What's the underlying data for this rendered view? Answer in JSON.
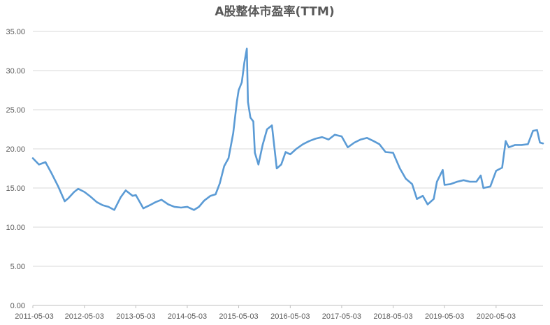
{
  "chart_data": {
    "type": "line",
    "title": "A股整体市盈率(TTM)",
    "xlabel": "",
    "ylabel": "",
    "ylim": [
      0,
      35
    ],
    "y_ticks": [
      "0.00",
      "5.00",
      "10.00",
      "15.00",
      "20.00",
      "25.00",
      "30.00",
      "35.00"
    ],
    "x_ticks": [
      "2011-05-03",
      "2012-05-03",
      "2013-05-03",
      "2014-05-03",
      "2015-05-03",
      "2016-05-03",
      "2017-05-03",
      "2018-05-03",
      "2019-05-03",
      "2020-05-03"
    ],
    "grid": true,
    "legend": "none",
    "line_color": "#5b9bd5",
    "series": [
      {
        "x": [
          "2011-05-03",
          "2011-06-15",
          "2011-08-01",
          "2011-09-15",
          "2011-10-30",
          "2011-12-15",
          "2012-01-10",
          "2012-02-20",
          "2012-03-20",
          "2012-05-03",
          "2012-06-15",
          "2012-07-30",
          "2012-09-10",
          "2012-10-20",
          "2012-12-01",
          "2013-01-15",
          "2013-02-20",
          "2013-04-10",
          "2013-05-03",
          "2013-06-25",
          "2013-08-10",
          "2013-09-20",
          "2013-11-01",
          "2013-12-20",
          "2014-02-01",
          "2014-03-20",
          "2014-05-03",
          "2014-06-20",
          "2014-07-25",
          "2014-09-01",
          "2014-10-15",
          "2014-11-20",
          "2014-12-20",
          "2015-01-20",
          "2015-02-20",
          "2015-03-25",
          "2015-04-20",
          "2015-05-03",
          "2015-05-25",
          "2015-06-12",
          "2015-06-30",
          "2015-07-08",
          "2015-07-25",
          "2015-08-15",
          "2015-08-26",
          "2015-09-20",
          "2015-10-20",
          "2015-11-20",
          "2015-12-25",
          "2016-01-28",
          "2016-02-29",
          "2016-03-31",
          "2016-05-03",
          "2016-06-15",
          "2016-08-01",
          "2016-09-15",
          "2016-10-30",
          "2016-12-15",
          "2017-01-30",
          "2017-03-15",
          "2017-05-03",
          "2017-06-15",
          "2017-08-01",
          "2017-09-15",
          "2017-10-30",
          "2017-12-15",
          "2018-01-26",
          "2018-03-10",
          "2018-05-03",
          "2018-06-20",
          "2018-08-01",
          "2018-09-15",
          "2018-10-19",
          "2018-11-30",
          "2019-01-03",
          "2019-02-15",
          "2019-03-10",
          "2019-04-20",
          "2019-05-03",
          "2019-06-15",
          "2019-08-01",
          "2019-09-15",
          "2019-10-30",
          "2019-12-15",
          "2020-01-15",
          "2020-02-03",
          "2020-03-23",
          "2020-05-03",
          "2020-06-15",
          "2020-07-10",
          "2020-08-01",
          "2020-09-15",
          "2020-10-30",
          "2020-12-15",
          "2021-01-20",
          "2021-02-18",
          "2021-03-10",
          "2021-04-01"
        ],
        "y": [
          18.8,
          18.0,
          18.3,
          16.8,
          15.2,
          13.3,
          13.7,
          14.5,
          14.9,
          14.5,
          13.9,
          13.2,
          12.8,
          12.6,
          12.2,
          13.8,
          14.7,
          14.0,
          14.1,
          12.4,
          12.8,
          13.2,
          13.5,
          12.9,
          12.6,
          12.5,
          12.6,
          12.2,
          12.6,
          13.4,
          14.0,
          14.2,
          15.6,
          17.8,
          18.8,
          22.0,
          26.0,
          27.5,
          28.5,
          31.0,
          32.8,
          26.0,
          24.0,
          23.5,
          19.5,
          18.0,
          20.5,
          22.5,
          23.0,
          17.5,
          18.0,
          19.6,
          19.3,
          20.0,
          20.6,
          21.0,
          21.3,
          21.5,
          21.2,
          21.8,
          21.6,
          20.2,
          20.8,
          21.2,
          21.4,
          21.0,
          20.6,
          19.6,
          19.5,
          17.5,
          16.2,
          15.5,
          13.6,
          14.0,
          12.9,
          13.6,
          15.8,
          17.3,
          15.4,
          15.5,
          15.8,
          16.0,
          15.8,
          15.8,
          16.6,
          15.0,
          15.2,
          17.2,
          17.6,
          21.0,
          20.2,
          20.5,
          20.5,
          20.6,
          22.3,
          22.4,
          20.8,
          20.7
        ]
      }
    ]
  }
}
